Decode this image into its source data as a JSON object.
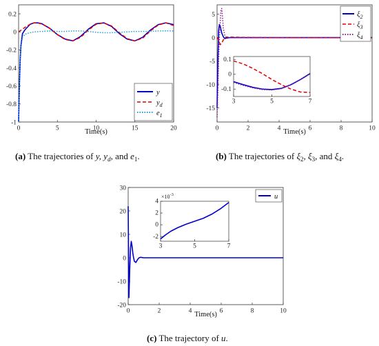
{
  "colors": {
    "blue": "#0000cc",
    "red": "#e00000",
    "dotted_cyan": "#1a9cdc",
    "purple": "#8a1a8a",
    "axis": "#333333"
  },
  "chart_data": [
    {
      "id": "a",
      "type": "line",
      "xlabel": "Time(s)",
      "xlim": [
        0,
        20
      ],
      "ylim": [
        -1,
        0.3
      ],
      "xticks": [
        "0",
        "5",
        "10",
        "15",
        "20"
      ],
      "yticks": [
        "0.2",
        "0",
        "-0.2",
        "-0.4",
        "-0.6",
        "-0.8",
        "-1"
      ],
      "legend_position": "bottom-right",
      "series": [
        {
          "name": "y",
          "style": "solid",
          "color": "#0000cc",
          "x": [
            0,
            0.1,
            0.2,
            0.3,
            0.5,
            0.8,
            1.0,
            1.5,
            2,
            2.5,
            3,
            4,
            5,
            6,
            7,
            8,
            9,
            10,
            11,
            12,
            13,
            14,
            15,
            16,
            17,
            18,
            19,
            20
          ],
          "y": [
            -1,
            -0.6,
            -0.32,
            -0.15,
            -0.02,
            0.02,
            0.04,
            0.085,
            0.1,
            0.1,
            0.09,
            0.04,
            -0.03,
            -0.08,
            -0.1,
            -0.05,
            0.03,
            0.09,
            0.1,
            0.06,
            -0.02,
            -0.08,
            -0.1,
            -0.06,
            0.02,
            0.08,
            0.1,
            0.08
          ]
        },
        {
          "name": "y_d",
          "style": "dashed",
          "color": "#e00000",
          "x": [
            0,
            0.5,
            1,
            1.5,
            2,
            2.5,
            3,
            4,
            5,
            6,
            7,
            8,
            9,
            10,
            11,
            12,
            13,
            14,
            15,
            16,
            17,
            18,
            19,
            20
          ],
          "y": [
            0,
            0.03,
            0.06,
            0.085,
            0.1,
            0.098,
            0.088,
            0.04,
            -0.03,
            -0.085,
            -0.1,
            -0.06,
            0.02,
            0.085,
            0.1,
            0.065,
            -0.01,
            -0.075,
            -0.1,
            -0.07,
            0.01,
            0.075,
            0.1,
            0.07
          ]
        },
        {
          "name": "e_1",
          "style": "dotted",
          "color": "#1a9cdc",
          "x": [
            0,
            0.1,
            0.2,
            0.3,
            0.5,
            0.8,
            1,
            1.5,
            2,
            3,
            4,
            5,
            6,
            7,
            8,
            9,
            10,
            11,
            12,
            13,
            14,
            15,
            16,
            17,
            18,
            19,
            20
          ],
          "y": [
            -1,
            -0.6,
            -0.33,
            -0.17,
            -0.06,
            -0.03,
            -0.02,
            -0.01,
            0,
            0.005,
            0.01,
            0.005,
            0.005,
            0.01,
            0.01,
            0.005,
            -0.005,
            -0.01,
            -0.01,
            -0.005,
            0,
            0.005,
            0.005,
            0.005,
            0.01,
            0.012,
            0.01
          ]
        }
      ],
      "legend_labels": [
        {
          "base": "y",
          "sub": ""
        },
        {
          "base": "y",
          "sub": "d"
        },
        {
          "base": "e",
          "sub": "1"
        }
      ]
    },
    {
      "id": "b",
      "type": "line",
      "xlabel": "Time(s)",
      "xlim": [
        0,
        10
      ],
      "ylim": [
        -18,
        7
      ],
      "xticks": [
        "0",
        "2",
        "4",
        "6",
        "8",
        "10"
      ],
      "yticks": [
        "5",
        "0",
        "-5",
        "-10",
        "-15"
      ],
      "legend_position": "top-right",
      "series": [
        {
          "name": "ξ_2",
          "style": "solid",
          "color": "#0000cc",
          "x": [
            0,
            0.05,
            0.1,
            0.15,
            0.2,
            0.3,
            0.4,
            0.5,
            0.6,
            0.8,
            1,
            1.5,
            2,
            4,
            6,
            8,
            10
          ],
          "y": [
            -15,
            -5,
            1.5,
            2.8,
            2.5,
            1,
            0.2,
            -0.2,
            -0.1,
            0,
            0,
            0,
            0,
            0,
            0,
            0,
            0
          ]
        },
        {
          "name": "ξ_3",
          "style": "dashed",
          "color": "#e00000",
          "x": [
            0,
            0.1,
            0.2,
            0.3,
            0.4,
            0.5,
            0.6,
            0.8,
            1,
            2,
            4,
            6,
            8,
            10
          ],
          "y": [
            0,
            -0.5,
            -1.5,
            -1.2,
            -0.5,
            0,
            0.1,
            0.1,
            0.1,
            0.05,
            0,
            0,
            0,
            0
          ]
        },
        {
          "name": "ξ_4",
          "style": "dotted",
          "color": "#8a1a8a",
          "x": [
            0,
            0.05,
            0.1,
            0.15,
            0.2,
            0.25,
            0.3,
            0.35,
            0.4,
            0.5,
            0.6,
            0.8,
            1,
            2,
            4,
            6,
            8,
            10
          ],
          "y": [
            -17,
            -12,
            -5,
            0,
            3,
            5.8,
            6.2,
            4.5,
            2,
            0.5,
            0,
            0,
            0,
            0,
            0,
            0,
            0,
            0
          ]
        }
      ],
      "legend_labels": [
        {
          "base": "ξ",
          "sub": "2"
        },
        {
          "base": "ξ",
          "sub": "3"
        },
        {
          "base": "ξ",
          "sub": "4"
        }
      ],
      "inset": {
        "xlim": [
          3,
          7
        ],
        "ylim": [
          -0.15,
          0.12
        ],
        "xticks": [
          "3",
          "5",
          "7"
        ],
        "yticks": [
          "0.1",
          "0",
          "-0.1"
        ],
        "series": [
          {
            "name": "ξ_2",
            "color": "#0000cc",
            "style": "solid",
            "x": [
              3,
              3.5,
              4,
              4.5,
              5,
              5.5,
              6,
              6.5,
              7
            ],
            "y": [
              -0.05,
              -0.07,
              -0.088,
              -0.1,
              -0.103,
              -0.095,
              -0.07,
              -0.035,
              0.005
            ]
          },
          {
            "name": "ξ_3",
            "color": "#e00000",
            "style": "dashed",
            "x": [
              3,
              3.5,
              4,
              4.5,
              5,
              5.5,
              6,
              6.5,
              7
            ],
            "y": [
              0.09,
              0.07,
              0.04,
              0.005,
              -0.035,
              -0.07,
              -0.1,
              -0.12,
              -0.123
            ]
          },
          {
            "name": "ξ_4",
            "color": "#8a1a8a",
            "style": "dotted",
            "x": [
              3,
              3.5,
              4,
              4.5,
              5,
              5.5,
              6,
              6.5,
              7
            ],
            "y": [
              -0.055,
              -0.075,
              -0.092,
              -0.103,
              -0.106,
              -0.097,
              -0.072,
              -0.036,
              0.003
            ]
          }
        ]
      }
    },
    {
      "id": "c",
      "type": "line",
      "xlabel": "Time(s)",
      "xlim": [
        0,
        10
      ],
      "ylim": [
        -20,
        30
      ],
      "xticks": [
        "0",
        "2",
        "4",
        "6",
        "8",
        "10"
      ],
      "yticks": [
        "30",
        "20",
        "10",
        "0",
        "-10",
        "-20"
      ],
      "legend_position": "top-right",
      "series": [
        {
          "name": "u",
          "style": "solid",
          "color": "#0000cc",
          "x": [
            0,
            0.02,
            0.05,
            0.08,
            0.1,
            0.15,
            0.2,
            0.25,
            0.3,
            0.35,
            0.4,
            0.5,
            0.6,
            0.7,
            0.8,
            1,
            1.5,
            2,
            4,
            6,
            8,
            10
          ],
          "y": [
            22,
            5,
            -17,
            -10,
            -5,
            4,
            7,
            5,
            2,
            0,
            -1.5,
            -2,
            -0.8,
            0,
            0.2,
            0,
            0,
            0,
            0,
            0,
            0,
            0
          ]
        }
      ],
      "legend_labels": [
        {
          "base": "u",
          "sub": ""
        }
      ],
      "inset": {
        "xlim": [
          3,
          7
        ],
        "ylim": [
          -0.0028,
          0.004
        ],
        "xticks": [
          "3",
          "5",
          "7"
        ],
        "yticks": [
          "4",
          "2",
          "0",
          "-2"
        ],
        "exponent_label": "×10",
        "exponent_power": "-3",
        "series": [
          {
            "name": "u",
            "color": "#0000cc",
            "style": "solid",
            "x": [
              3,
              3.3,
              3.6,
              4,
              4.5,
              5,
              5.5,
              6,
              6.5,
              7
            ],
            "y": [
              -0.0024,
              -0.0017,
              -0.0011,
              -0.0005,
              0.0001,
              0.0006,
              0.0011,
              0.0018,
              0.0027,
              0.0038
            ]
          }
        ]
      }
    }
  ],
  "captions": {
    "a": {
      "label": "(a)",
      "text": "The trajectories of",
      "tail": ", and"
    },
    "b": {
      "label": "(b)",
      "text": "The trajectories of",
      "tail": ", and"
    },
    "c": {
      "label": "(c)",
      "text": "The trajectory of",
      "tail": "."
    }
  }
}
